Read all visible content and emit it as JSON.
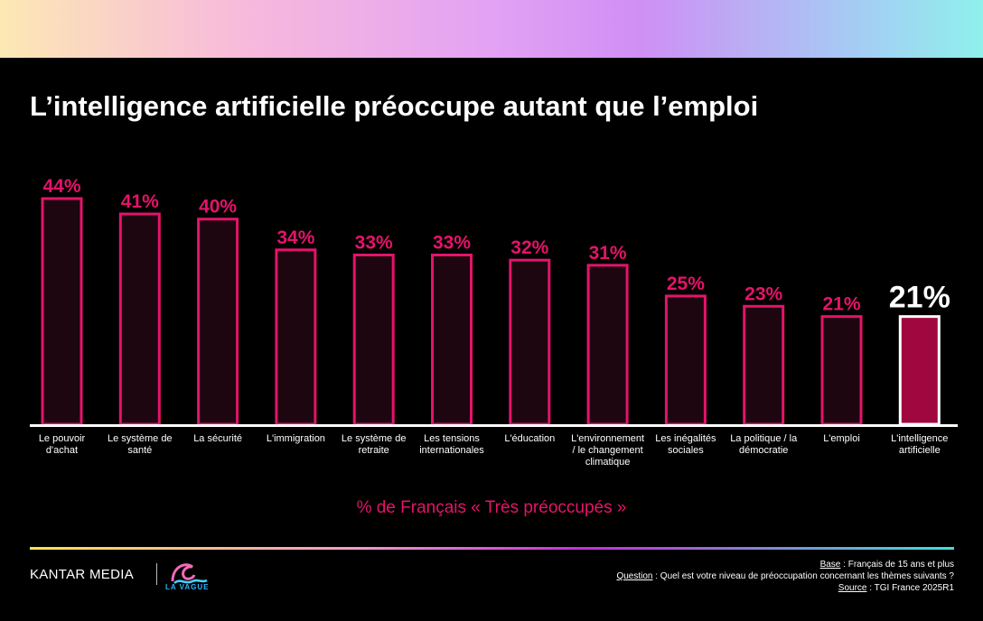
{
  "title": "L’intelligence artificielle préoccupe autant que l’emploi",
  "subtitle": "% de Français « Très préoccupés »",
  "brand": {
    "name": "KANTAR MEDIA",
    "logo_text": "LA VAGUE"
  },
  "footnotes": {
    "base_label": "Base",
    "base_text": " : Français de 15 ans et plus",
    "question_label": "Question",
    "question_text": " : Quel est votre niveau de préoccupation concernant les thèmes suivants ?",
    "source_label": "Source",
    "source_text": " : TGI France 2025R1"
  },
  "colors": {
    "accent": "#e5136a",
    "bar_fill": "#1e0610",
    "highlight_fill": "#a0073f",
    "highlight_stroke": "#ffffff",
    "text": "#ffffff"
  },
  "chart_data": {
    "type": "bar",
    "title": "L’intelligence artificielle préoccupe autant que l’emploi",
    "xlabel": "% de Français « Très préoccupés »",
    "ylabel": "",
    "ylim": [
      0,
      44
    ],
    "categories": [
      [
        "Le pouvoir",
        "d'achat"
      ],
      [
        "Le système de",
        "santé"
      ],
      [
        "La sécurité"
      ],
      [
        "L'immigration"
      ],
      [
        "Le système de",
        "retraite"
      ],
      [
        "Les tensions",
        "internationales"
      ],
      [
        "L'éducation"
      ],
      [
        "L'environnement",
        "/ le changement",
        "climatique"
      ],
      [
        "Les inégalités",
        "sociales"
      ],
      [
        "La politique / la",
        "démocratie"
      ],
      [
        "L'emploi"
      ],
      [
        "L'intelligence",
        "artificielle"
      ]
    ],
    "values": [
      44,
      41,
      40,
      34,
      33,
      33,
      32,
      31,
      25,
      23,
      21,
      21
    ],
    "value_labels": [
      "44%",
      "41%",
      "40%",
      "34%",
      "33%",
      "33%",
      "32%",
      "31%",
      "25%",
      "23%",
      "21%",
      "21%"
    ],
    "highlight_index": 11
  }
}
